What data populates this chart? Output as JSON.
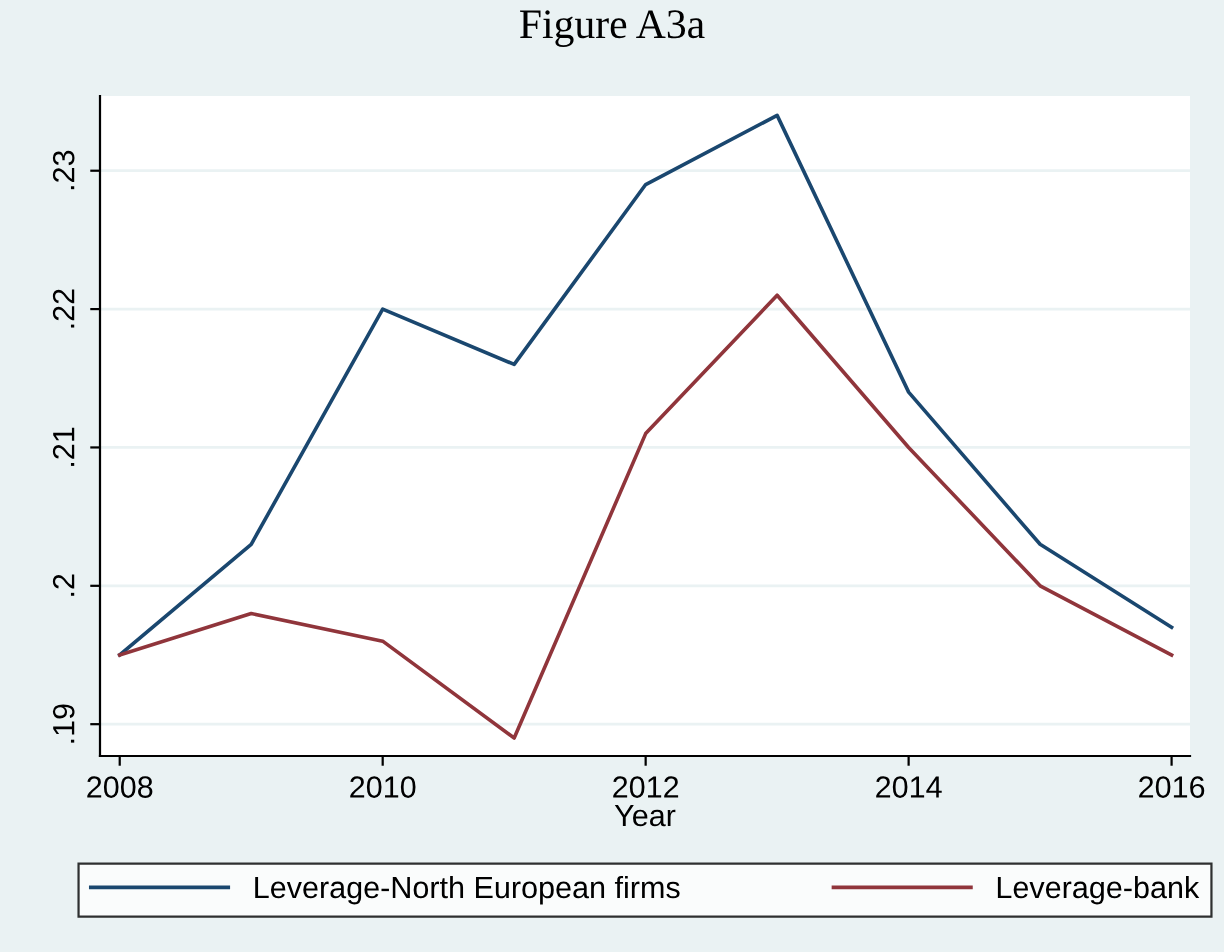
{
  "chart_data": {
    "type": "line",
    "title": "Figure A3a",
    "xlabel": "Year",
    "x": [
      2008,
      2009,
      2010,
      2011,
      2012,
      2013,
      2014,
      2015,
      2016
    ],
    "series": [
      {
        "name": "Leverage-North European firms",
        "color": "#1a476f",
        "values": [
          0.195,
          0.203,
          0.22,
          0.216,
          0.229,
          0.234,
          0.214,
          0.203,
          0.197
        ]
      },
      {
        "name": "Leverage-bank",
        "color": "#90353b",
        "values": [
          0.195,
          0.198,
          0.196,
          0.189,
          0.211,
          0.221,
          0.21,
          0.2,
          0.195
        ]
      }
    ],
    "xlim": [
      2007.85,
      2016.14
    ],
    "xticks": [
      2008,
      2010,
      2012,
      2014,
      2016
    ],
    "ylim": [
      0.1877,
      0.2354
    ],
    "yticks": [
      {
        "value": 0.19,
        "label": ".19"
      },
      {
        "value": 0.2,
        "label": ".2"
      },
      {
        "value": 0.21,
        "label": ".21"
      },
      {
        "value": 0.22,
        "label": ".22"
      },
      {
        "value": 0.23,
        "label": ".23"
      }
    ],
    "grid": "y",
    "legend": "bottom",
    "marker": "none",
    "line_style": "solid"
  }
}
